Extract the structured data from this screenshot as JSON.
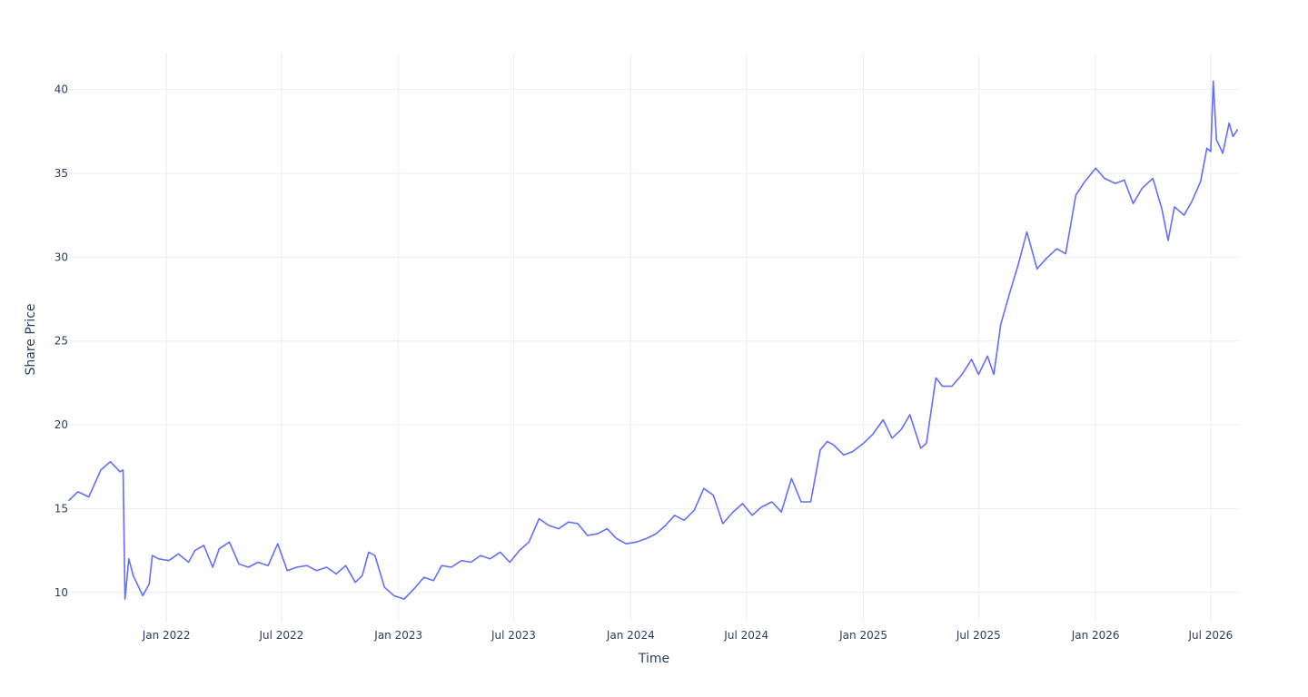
{
  "chart_data": {
    "type": "line",
    "title": "",
    "xlabel": "Time",
    "ylabel": "Share Price",
    "grid": true,
    "legend": "none",
    "line_color": "#636efa",
    "text_color": "#2a3f5f",
    "grid_color": "#ebeef3",
    "xlim": [
      "2021-08-01",
      "2026-08-13"
    ],
    "ylim": [
      8.2,
      42.2
    ],
    "x_ticks": [
      {
        "date": "2022-01-01",
        "label": "Jan 2022"
      },
      {
        "date": "2022-07-01",
        "label": "Jul 2022"
      },
      {
        "date": "2023-01-01",
        "label": "Jan 2023"
      },
      {
        "date": "2023-07-01",
        "label": "Jul 2023"
      },
      {
        "date": "2024-01-01",
        "label": "Jan 2024"
      },
      {
        "date": "2024-07-01",
        "label": "Jul 2024"
      },
      {
        "date": "2025-01-01",
        "label": "Jan 2025"
      },
      {
        "date": "2025-07-01",
        "label": "Jul 2025"
      },
      {
        "date": "2026-01-01",
        "label": "Jan 2026"
      },
      {
        "date": "2026-07-01",
        "label": "Jul 2026"
      }
    ],
    "y_ticks": [
      10,
      15,
      20,
      25,
      30,
      35,
      40
    ],
    "series": [
      {
        "x": [
          "2021-08-01",
          "2021-08-15",
          "2021-09-01",
          "2021-09-20",
          "2021-10-05",
          "2021-10-20",
          "2021-10-25",
          "2021-10-28",
          "2021-11-03",
          "2021-11-10",
          "2021-11-15",
          "2021-11-25",
          "2021-12-05",
          "2021-12-10",
          "2021-12-20",
          "2022-01-05",
          "2022-01-20",
          "2022-02-05",
          "2022-02-15",
          "2022-03-01",
          "2022-03-15",
          "2022-03-25",
          "2022-04-10",
          "2022-04-25",
          "2022-05-10",
          "2022-05-25",
          "2022-06-10",
          "2022-06-25",
          "2022-07-10",
          "2022-07-25",
          "2022-08-10",
          "2022-08-25",
          "2022-09-10",
          "2022-09-25",
          "2022-10-10",
          "2022-10-25",
          "2022-11-05",
          "2022-11-15",
          "2022-11-25",
          "2022-12-10",
          "2022-12-25",
          "2023-01-10",
          "2023-01-25",
          "2023-02-10",
          "2023-02-25",
          "2023-03-10",
          "2023-03-25",
          "2023-04-10",
          "2023-04-25",
          "2023-05-10",
          "2023-05-25",
          "2023-06-10",
          "2023-06-25",
          "2023-07-10",
          "2023-07-25",
          "2023-08-10",
          "2023-08-25",
          "2023-09-10",
          "2023-09-25",
          "2023-10-10",
          "2023-10-25",
          "2023-11-10",
          "2023-11-25",
          "2023-12-10",
          "2023-12-25",
          "2024-01-10",
          "2024-01-25",
          "2024-02-10",
          "2024-02-25",
          "2024-03-10",
          "2024-03-25",
          "2024-04-10",
          "2024-04-25",
          "2024-05-10",
          "2024-05-25",
          "2024-06-10",
          "2024-06-25",
          "2024-07-10",
          "2024-07-25",
          "2024-08-10",
          "2024-08-25",
          "2024-09-10",
          "2024-09-25",
          "2024-10-10",
          "2024-10-25",
          "2024-11-05",
          "2024-11-15",
          "2024-12-01",
          "2024-12-15",
          "2025-01-01",
          "2025-01-15",
          "2025-02-01",
          "2025-02-15",
          "2025-03-01",
          "2025-03-15",
          "2025-04-01",
          "2025-04-10",
          "2025-04-25",
          "2025-05-05",
          "2025-05-20",
          "2025-06-05",
          "2025-06-20",
          "2025-07-01",
          "2025-07-15",
          "2025-07-25",
          "2025-08-05",
          "2025-08-20",
          "2025-09-01",
          "2025-09-15",
          "2025-10-01",
          "2025-10-15",
          "2025-11-01",
          "2025-11-15",
          "2025-12-01",
          "2025-12-15",
          "2026-01-01",
          "2026-01-15",
          "2026-02-01",
          "2026-02-15",
          "2026-03-01",
          "2026-03-15",
          "2026-04-01",
          "2026-04-15",
          "2026-04-25",
          "2026-05-05",
          "2026-05-20",
          "2026-06-01",
          "2026-06-15",
          "2026-06-25",
          "2026-07-01",
          "2026-07-05",
          "2026-07-10",
          "2026-07-20",
          "2026-07-30",
          "2026-08-05",
          "2026-08-12"
        ],
        "y": [
          15.5,
          16.0,
          15.7,
          17.3,
          17.8,
          17.2,
          17.3,
          9.6,
          12.0,
          11.0,
          10.6,
          9.8,
          10.5,
          12.2,
          12.0,
          11.9,
          12.3,
          11.8,
          12.5,
          12.8,
          11.5,
          12.6,
          13.0,
          11.7,
          11.5,
          11.8,
          11.6,
          12.9,
          11.3,
          11.5,
          11.6,
          11.3,
          11.5,
          11.1,
          11.6,
          10.6,
          11.0,
          12.4,
          12.2,
          10.3,
          9.8,
          9.6,
          10.2,
          10.9,
          10.7,
          11.6,
          11.5,
          11.9,
          11.8,
          12.2,
          12.0,
          12.4,
          11.8,
          12.5,
          13.0,
          14.4,
          14.0,
          13.8,
          14.2,
          14.1,
          13.4,
          13.5,
          13.8,
          13.2,
          12.9,
          13.0,
          13.2,
          13.5,
          14.0,
          14.6,
          14.3,
          14.9,
          16.2,
          15.8,
          14.1,
          14.8,
          15.3,
          14.6,
          15.1,
          15.4,
          14.8,
          16.8,
          15.4,
          15.4,
          18.5,
          19.0,
          18.8,
          18.2,
          18.4,
          18.9,
          19.4,
          20.3,
          19.2,
          19.7,
          20.6,
          18.6,
          18.9,
          22.8,
          22.3,
          22.3,
          23.0,
          23.9,
          23.0,
          24.1,
          23.0,
          26.0,
          28.0,
          29.5,
          31.5,
          29.3,
          29.9,
          30.5,
          30.2,
          33.7,
          34.5,
          35.3,
          34.7,
          34.4,
          34.6,
          33.2,
          34.1,
          34.7,
          32.9,
          31.0,
          33.0,
          32.5,
          33.3,
          34.5,
          36.5,
          36.3,
          40.5,
          37.0,
          36.2,
          38.0,
          37.2,
          37.6
        ]
      }
    ]
  }
}
